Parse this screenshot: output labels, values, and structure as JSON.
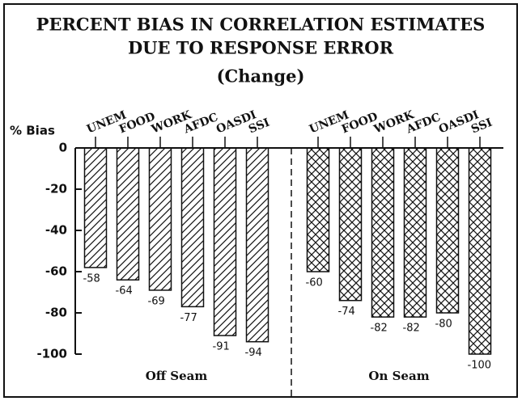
{
  "chart_data": {
    "type": "bar",
    "title": "PERCENT BIAS IN CORRELATION ESTIMATES",
    "title_line2": "DUE TO RESPONSE ERROR",
    "subtitle": "(Change)",
    "y_label": "% Bias",
    "categories": [
      "UNEM",
      "FOOD",
      "WORK",
      "AFDC",
      "OASDI",
      "SSI"
    ],
    "series": [
      {
        "name": "Off Seam",
        "pattern": "hatch",
        "values": [
          -58,
          -64,
          -69,
          -77,
          -91,
          -94
        ]
      },
      {
        "name": "On Seam",
        "pattern": "crosshatch",
        "values": [
          -60,
          -74,
          -82,
          -82,
          -80,
          -100
        ]
      }
    ],
    "ylim": [
      -100,
      0
    ],
    "yticks": [
      0,
      -20,
      -40,
      -60,
      -80,
      -100
    ]
  }
}
